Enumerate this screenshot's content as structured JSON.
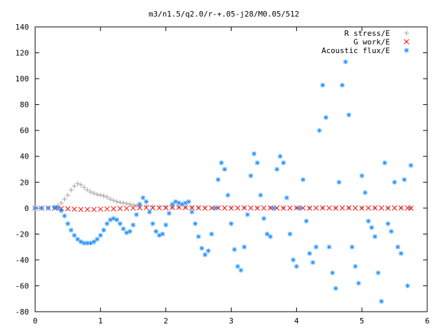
{
  "chart_data": {
    "type": "scatter",
    "title": "m3/n1.5/q2.0/r-+.05-j28/M0.05/512",
    "xlabel": "",
    "ylabel": "",
    "xlim": [
      0,
      6
    ],
    "ylim": [
      -80,
      140
    ],
    "x_ticks": [
      0,
      1,
      2,
      3,
      4,
      5,
      6
    ],
    "y_ticks": [
      -80,
      -60,
      -40,
      -20,
      0,
      20,
      40,
      60,
      80,
      100,
      120,
      140
    ],
    "grid": false,
    "legend_position": "top-right",
    "series": [
      {
        "name": "R stress/E",
        "marker": "plus",
        "color": "#a0a0a0",
        "points": [
          [
            0.0,
            0
          ],
          [
            0.1,
            0.1
          ],
          [
            0.2,
            0.3
          ],
          [
            0.3,
            1
          ],
          [
            0.35,
            2
          ],
          [
            0.4,
            4
          ],
          [
            0.45,
            7
          ],
          [
            0.5,
            10
          ],
          [
            0.55,
            14
          ],
          [
            0.6,
            17
          ],
          [
            0.65,
            19
          ],
          [
            0.7,
            18
          ],
          [
            0.75,
            16
          ],
          [
            0.8,
            14
          ],
          [
            0.85,
            12.5
          ],
          [
            0.9,
            11.5
          ],
          [
            0.95,
            10.5
          ],
          [
            1.0,
            10
          ],
          [
            1.05,
            9.5
          ],
          [
            1.1,
            8.5
          ],
          [
            1.15,
            7
          ],
          [
            1.2,
            6
          ],
          [
            1.25,
            5
          ],
          [
            1.3,
            4.5
          ],
          [
            1.35,
            4
          ],
          [
            1.4,
            3.5
          ],
          [
            1.45,
            3
          ],
          [
            1.5,
            2.5
          ],
          [
            1.55,
            2
          ],
          [
            1.6,
            2
          ],
          [
            1.7,
            1.5
          ],
          [
            1.8,
            1.2
          ],
          [
            1.9,
            1
          ],
          [
            2.0,
            1
          ],
          [
            2.1,
            0.8
          ],
          [
            2.2,
            0.8
          ],
          [
            2.3,
            0.6
          ],
          [
            2.4,
            0.6
          ],
          [
            2.5,
            0.5
          ],
          [
            2.6,
            0.5
          ],
          [
            2.8,
            0.4
          ],
          [
            3.0,
            0.4
          ],
          [
            3.2,
            0.3
          ],
          [
            3.4,
            0.3
          ],
          [
            3.6,
            0.3
          ],
          [
            3.8,
            0.2
          ],
          [
            4.0,
            0.2
          ],
          [
            4.2,
            0.2
          ],
          [
            4.4,
            0.2
          ],
          [
            4.6,
            0.2
          ],
          [
            4.8,
            0.2
          ],
          [
            5.0,
            0.2
          ],
          [
            5.2,
            0.1
          ],
          [
            5.4,
            0.1
          ],
          [
            5.6,
            0.1
          ],
          [
            5.75,
            0.1
          ]
        ]
      },
      {
        "name": "G work/E",
        "marker": "cross",
        "color": "#ff0000",
        "points": [
          [
            0.0,
            0
          ],
          [
            0.1,
            0
          ],
          [
            0.2,
            0
          ],
          [
            0.3,
            0
          ],
          [
            0.4,
            -0.3
          ],
          [
            0.5,
            -0.5
          ],
          [
            0.6,
            -0.8
          ],
          [
            0.7,
            -1
          ],
          [
            0.8,
            -1
          ],
          [
            0.9,
            -1
          ],
          [
            1.0,
            -0.8
          ],
          [
            1.1,
            -0.6
          ],
          [
            1.2,
            -0.5
          ],
          [
            1.3,
            -0.3
          ],
          [
            1.4,
            -0.2
          ],
          [
            1.5,
            0
          ],
          [
            1.6,
            0.3
          ],
          [
            1.7,
            0.4
          ],
          [
            1.8,
            0.3
          ],
          [
            1.9,
            0.2
          ],
          [
            2.0,
            0.3
          ],
          [
            2.1,
            0.5
          ],
          [
            2.2,
            0.6
          ],
          [
            2.3,
            0.5
          ],
          [
            2.4,
            0.3
          ],
          [
            2.5,
            0.2
          ],
          [
            2.6,
            0
          ],
          [
            2.7,
            0.1
          ],
          [
            2.8,
            0.2
          ],
          [
            2.9,
            0.1
          ],
          [
            3.0,
            0
          ],
          [
            3.1,
            0.1
          ],
          [
            3.2,
            0.2
          ],
          [
            3.3,
            0.1
          ],
          [
            3.4,
            0
          ],
          [
            3.5,
            0.1
          ],
          [
            3.6,
            0.2
          ],
          [
            3.7,
            0.1
          ],
          [
            3.8,
            0
          ],
          [
            3.9,
            0.1
          ],
          [
            4.0,
            0.2
          ],
          [
            4.1,
            0.1
          ],
          [
            4.2,
            0
          ],
          [
            4.3,
            0.1
          ],
          [
            4.4,
            0.2
          ],
          [
            4.5,
            0.1
          ],
          [
            4.6,
            0
          ],
          [
            4.7,
            0.1
          ],
          [
            4.8,
            0.2
          ],
          [
            4.9,
            0.1
          ],
          [
            5.0,
            0
          ],
          [
            5.1,
            0.1
          ],
          [
            5.2,
            0.2
          ],
          [
            5.3,
            0.1
          ],
          [
            5.4,
            0
          ],
          [
            5.5,
            0.1
          ],
          [
            5.6,
            0.2
          ],
          [
            5.7,
            0.1
          ],
          [
            5.75,
            0
          ]
        ]
      },
      {
        "name": "Acoustic flux/E",
        "marker": "star",
        "color": "#1e90ff",
        "points": [
          [
            0.0,
            0
          ],
          [
            0.1,
            0
          ],
          [
            0.2,
            0
          ],
          [
            0.3,
            0.5
          ],
          [
            0.35,
            0
          ],
          [
            0.4,
            -2
          ],
          [
            0.45,
            -6
          ],
          [
            0.5,
            -12
          ],
          [
            0.55,
            -17
          ],
          [
            0.6,
            -21
          ],
          [
            0.65,
            -24
          ],
          [
            0.7,
            -26
          ],
          [
            0.75,
            -27
          ],
          [
            0.8,
            -27
          ],
          [
            0.85,
            -27
          ],
          [
            0.9,
            -26
          ],
          [
            0.95,
            -24
          ],
          [
            1.0,
            -21
          ],
          [
            1.05,
            -17
          ],
          [
            1.1,
            -12
          ],
          [
            1.15,
            -9
          ],
          [
            1.2,
            -8
          ],
          [
            1.25,
            -9
          ],
          [
            1.3,
            -12
          ],
          [
            1.35,
            -16
          ],
          [
            1.4,
            -19
          ],
          [
            1.45,
            -18
          ],
          [
            1.5,
            -13
          ],
          [
            1.55,
            -5
          ],
          [
            1.6,
            3
          ],
          [
            1.65,
            8
          ],
          [
            1.7,
            5
          ],
          [
            1.75,
            -3
          ],
          [
            1.8,
            -12
          ],
          [
            1.85,
            -18
          ],
          [
            1.9,
            -21
          ],
          [
            1.95,
            -20
          ],
          [
            2.0,
            -13
          ],
          [
            2.05,
            -4
          ],
          [
            2.1,
            3
          ],
          [
            2.15,
            5
          ],
          [
            2.2,
            4
          ],
          [
            2.25,
            3
          ],
          [
            2.3,
            4
          ],
          [
            2.35,
            5
          ],
          [
            2.4,
            -3
          ],
          [
            2.45,
            -12
          ],
          [
            2.5,
            -22
          ],
          [
            2.55,
            -31
          ],
          [
            2.6,
            -36
          ],
          [
            2.65,
            -33
          ],
          [
            2.7,
            -20
          ],
          [
            2.75,
            0
          ],
          [
            2.8,
            22
          ],
          [
            2.85,
            35
          ],
          [
            2.9,
            30
          ],
          [
            2.95,
            10
          ],
          [
            3.0,
            -12
          ],
          [
            3.05,
            -32
          ],
          [
            3.1,
            -45
          ],
          [
            3.15,
            -48
          ],
          [
            3.2,
            -30
          ],
          [
            3.25,
            -5
          ],
          [
            3.3,
            25
          ],
          [
            3.35,
            42
          ],
          [
            3.4,
            35
          ],
          [
            3.45,
            10
          ],
          [
            3.5,
            -8
          ],
          [
            3.55,
            -20
          ],
          [
            3.6,
            -22
          ],
          [
            3.65,
            0
          ],
          [
            3.7,
            30
          ],
          [
            3.75,
            40
          ],
          [
            3.8,
            35
          ],
          [
            3.85,
            8
          ],
          [
            3.9,
            -20
          ],
          [
            3.95,
            -40
          ],
          [
            4.0,
            -45
          ],
          [
            4.05,
            0
          ],
          [
            4.1,
            22
          ],
          [
            4.15,
            -10
          ],
          [
            4.2,
            -35
          ],
          [
            4.25,
            -42
          ],
          [
            4.3,
            -30
          ],
          [
            4.35,
            60
          ],
          [
            4.4,
            95
          ],
          [
            4.45,
            70
          ],
          [
            4.5,
            -30
          ],
          [
            4.55,
            -50
          ],
          [
            4.6,
            -62
          ],
          [
            4.65,
            20
          ],
          [
            4.7,
            95
          ],
          [
            4.75,
            113
          ],
          [
            4.8,
            72
          ],
          [
            4.85,
            -30
          ],
          [
            4.9,
            -45
          ],
          [
            4.95,
            -58
          ],
          [
            5.0,
            25
          ],
          [
            5.05,
            12
          ],
          [
            5.1,
            -10
          ],
          [
            5.15,
            -15
          ],
          [
            5.2,
            -22
          ],
          [
            5.25,
            -50
          ],
          [
            5.3,
            -72
          ],
          [
            5.35,
            35
          ],
          [
            5.4,
            -12
          ],
          [
            5.45,
            -18
          ],
          [
            5.5,
            20
          ],
          [
            5.55,
            -30
          ],
          [
            5.6,
            -35
          ],
          [
            5.65,
            22
          ],
          [
            5.7,
            -60
          ],
          [
            5.75,
            33
          ]
        ]
      }
    ]
  }
}
